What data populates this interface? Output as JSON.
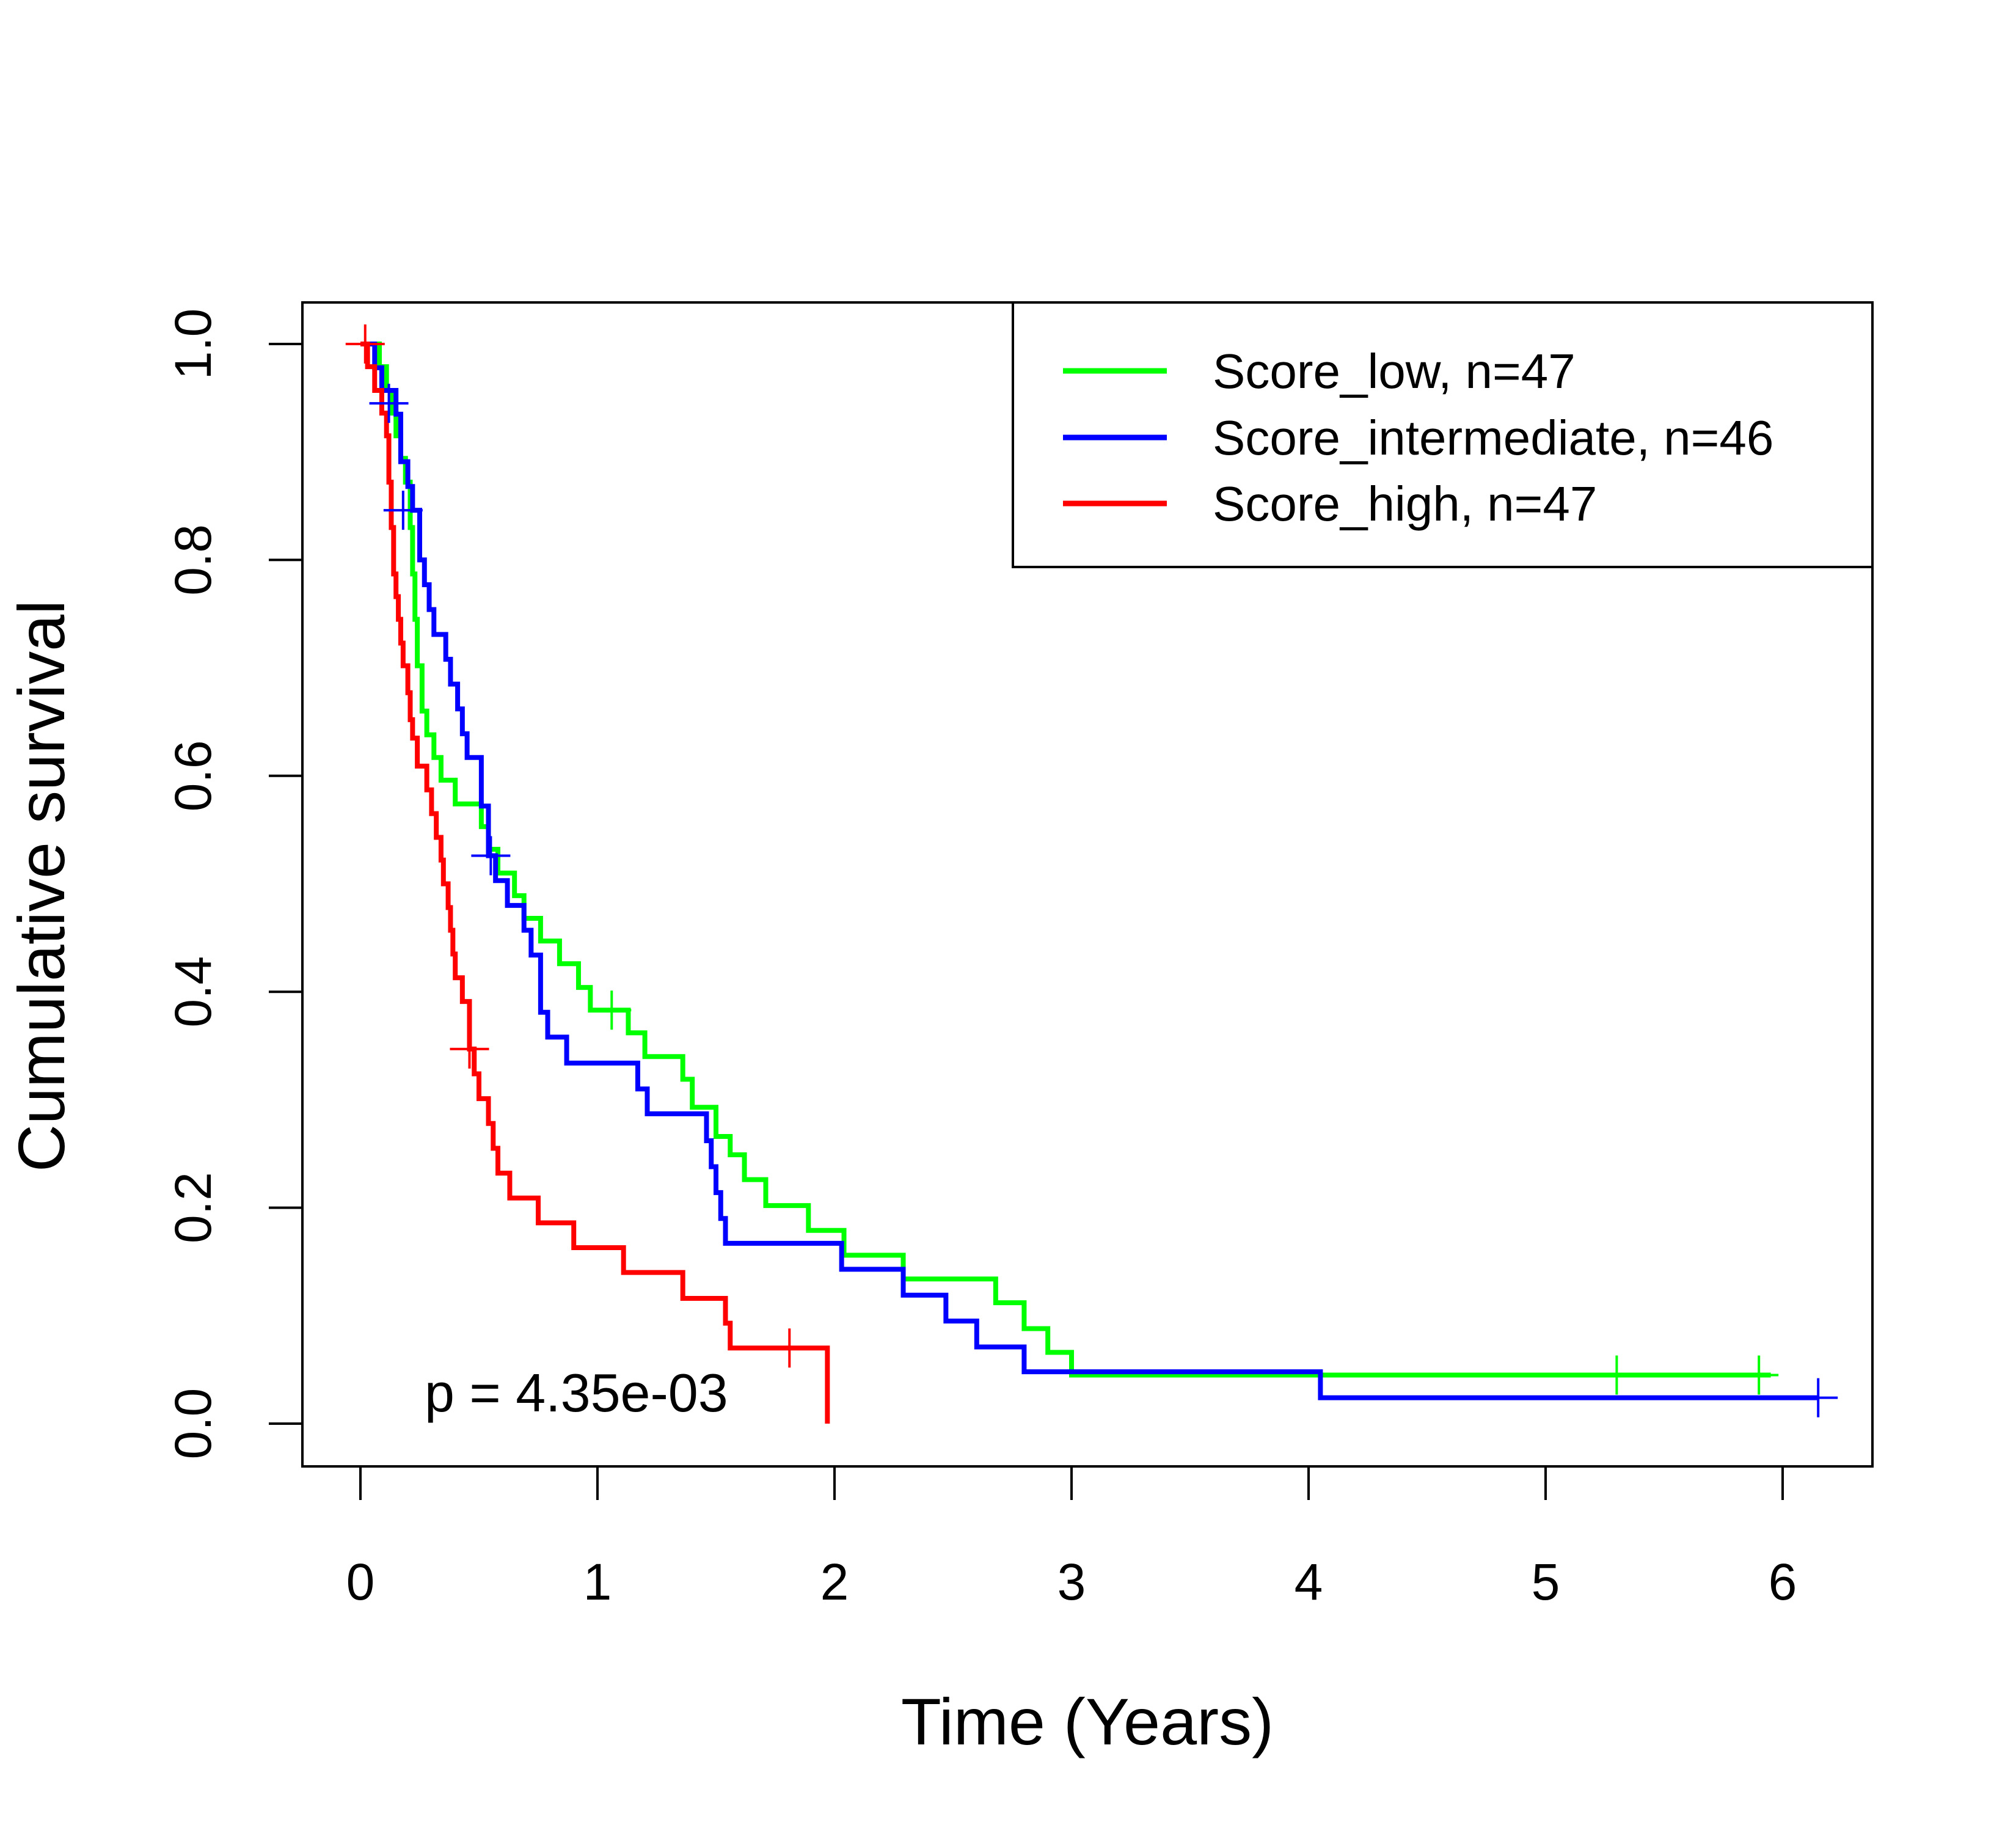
{
  "chart_data": {
    "type": "line",
    "subtype": "kaplan-meier step curves",
    "title": "",
    "xlabel": "Time (Years)",
    "ylabel": "Cumulative survival",
    "xlim": [
      0,
      6.2
    ],
    "ylim": [
      0,
      1
    ],
    "xticks": [
      "0",
      "1",
      "2",
      "3",
      "4",
      "5",
      "6"
    ],
    "yticks": [
      "0.0",
      "0.2",
      "0.4",
      "0.6",
      "0.8",
      "1.0"
    ],
    "grid": false,
    "legend_position": "top-right",
    "annotation": "p = 4.35e-03",
    "series": [
      {
        "name": "Score_low, n=47",
        "color": "#00ff00",
        "steps": [
          [
            0,
            1.0
          ],
          [
            0.08,
            0.979
          ],
          [
            0.11,
            0.957
          ],
          [
            0.13,
            0.936
          ],
          [
            0.15,
            0.915
          ],
          [
            0.17,
            0.894
          ],
          [
            0.19,
            0.872
          ],
          [
            0.21,
            0.83
          ],
          [
            0.22,
            0.787
          ],
          [
            0.23,
            0.745
          ],
          [
            0.24,
            0.702
          ],
          [
            0.26,
            0.66
          ],
          [
            0.28,
            0.638
          ],
          [
            0.31,
            0.617
          ],
          [
            0.34,
            0.596
          ],
          [
            0.4,
            0.574
          ],
          [
            0.51,
            0.553
          ],
          [
            0.54,
            0.532
          ],
          [
            0.58,
            0.51
          ],
          [
            0.65,
            0.489
          ],
          [
            0.69,
            0.468
          ],
          [
            0.76,
            0.447
          ],
          [
            0.84,
            0.426
          ],
          [
            0.92,
            0.404
          ],
          [
            0.97,
            0.383
          ],
          [
            1.13,
            0.362
          ],
          [
            1.2,
            0.34
          ],
          [
            1.36,
            0.319
          ],
          [
            1.4,
            0.293
          ],
          [
            1.5,
            0.266
          ],
          [
            1.56,
            0.249
          ],
          [
            1.62,
            0.226
          ],
          [
            1.71,
            0.202
          ],
          [
            1.89,
            0.179
          ],
          [
            2.04,
            0.156
          ],
          [
            2.29,
            0.134
          ],
          [
            2.68,
            0.112
          ],
          [
            2.8,
            0.088
          ],
          [
            2.9,
            0.066
          ],
          [
            3.0,
            0.045
          ],
          [
            5.95,
            0.045
          ]
        ],
        "censored": [
          [
            1.06,
            0.383
          ],
          [
            5.3,
            0.045
          ],
          [
            5.9,
            0.045
          ]
        ]
      },
      {
        "name": "Score_intermediate, n=46",
        "color": "#0000ff",
        "steps": [
          [
            0,
            1.0
          ],
          [
            0.06,
            0.978
          ],
          [
            0.09,
            0.957
          ],
          [
            0.15,
            0.935
          ],
          [
            0.17,
            0.891
          ],
          [
            0.2,
            0.868
          ],
          [
            0.22,
            0.846
          ],
          [
            0.25,
            0.8
          ],
          [
            0.27,
            0.777
          ],
          [
            0.29,
            0.754
          ],
          [
            0.31,
            0.731
          ],
          [
            0.36,
            0.708
          ],
          [
            0.38,
            0.685
          ],
          [
            0.41,
            0.662
          ],
          [
            0.43,
            0.639
          ],
          [
            0.45,
            0.617
          ],
          [
            0.51,
            0.572
          ],
          [
            0.54,
            0.526
          ],
          [
            0.57,
            0.503
          ],
          [
            0.62,
            0.48
          ],
          [
            0.69,
            0.457
          ],
          [
            0.72,
            0.434
          ],
          [
            0.76,
            0.381
          ],
          [
            0.79,
            0.358
          ],
          [
            0.87,
            0.334
          ],
          [
            1.17,
            0.31
          ],
          [
            1.21,
            0.287
          ],
          [
            1.46,
            0.262
          ],
          [
            1.48,
            0.238
          ],
          [
            1.5,
            0.214
          ],
          [
            1.52,
            0.19
          ],
          [
            1.54,
            0.167
          ],
          [
            2.03,
            0.143
          ],
          [
            2.29,
            0.119
          ],
          [
            2.47,
            0.095
          ],
          [
            2.6,
            0.071
          ],
          [
            2.8,
            0.048
          ],
          [
            4.05,
            0.024
          ],
          [
            6.15,
            0.024
          ]
        ],
        "censored": [
          [
            0.12,
            0.945
          ],
          [
            0.18,
            0.846
          ],
          [
            0.55,
            0.526
          ],
          [
            6.15,
            0.024
          ]
        ]
      },
      {
        "name": "Score_high, n=47",
        "color": "#ff0000",
        "steps": [
          [
            0,
            1.0
          ],
          [
            0.03,
            0.979
          ],
          [
            0.06,
            0.957
          ],
          [
            0.09,
            0.936
          ],
          [
            0.11,
            0.915
          ],
          [
            0.12,
            0.872
          ],
          [
            0.13,
            0.83
          ],
          [
            0.14,
            0.787
          ],
          [
            0.15,
            0.766
          ],
          [
            0.16,
            0.745
          ],
          [
            0.17,
            0.723
          ],
          [
            0.18,
            0.702
          ],
          [
            0.2,
            0.677
          ],
          [
            0.21,
            0.652
          ],
          [
            0.22,
            0.635
          ],
          [
            0.24,
            0.609
          ],
          [
            0.28,
            0.587
          ],
          [
            0.3,
            0.565
          ],
          [
            0.32,
            0.543
          ],
          [
            0.34,
            0.522
          ],
          [
            0.35,
            0.5
          ],
          [
            0.37,
            0.478
          ],
          [
            0.38,
            0.457
          ],
          [
            0.39,
            0.435
          ],
          [
            0.4,
            0.413
          ],
          [
            0.43,
            0.391
          ],
          [
            0.46,
            0.347
          ],
          [
            0.48,
            0.324
          ],
          [
            0.5,
            0.301
          ],
          [
            0.54,
            0.278
          ],
          [
            0.56,
            0.255
          ],
          [
            0.58,
            0.232
          ],
          [
            0.63,
            0.209
          ],
          [
            0.75,
            0.186
          ],
          [
            0.9,
            0.163
          ],
          [
            1.11,
            0.14
          ],
          [
            1.36,
            0.116
          ],
          [
            1.54,
            0.093
          ],
          [
            1.56,
            0.07
          ],
          [
            1.97,
            0.0
          ]
        ],
        "censored": [
          [
            0.02,
            1.0
          ],
          [
            0.46,
            0.347
          ],
          [
            1.81,
            0.07
          ]
        ]
      }
    ]
  }
}
